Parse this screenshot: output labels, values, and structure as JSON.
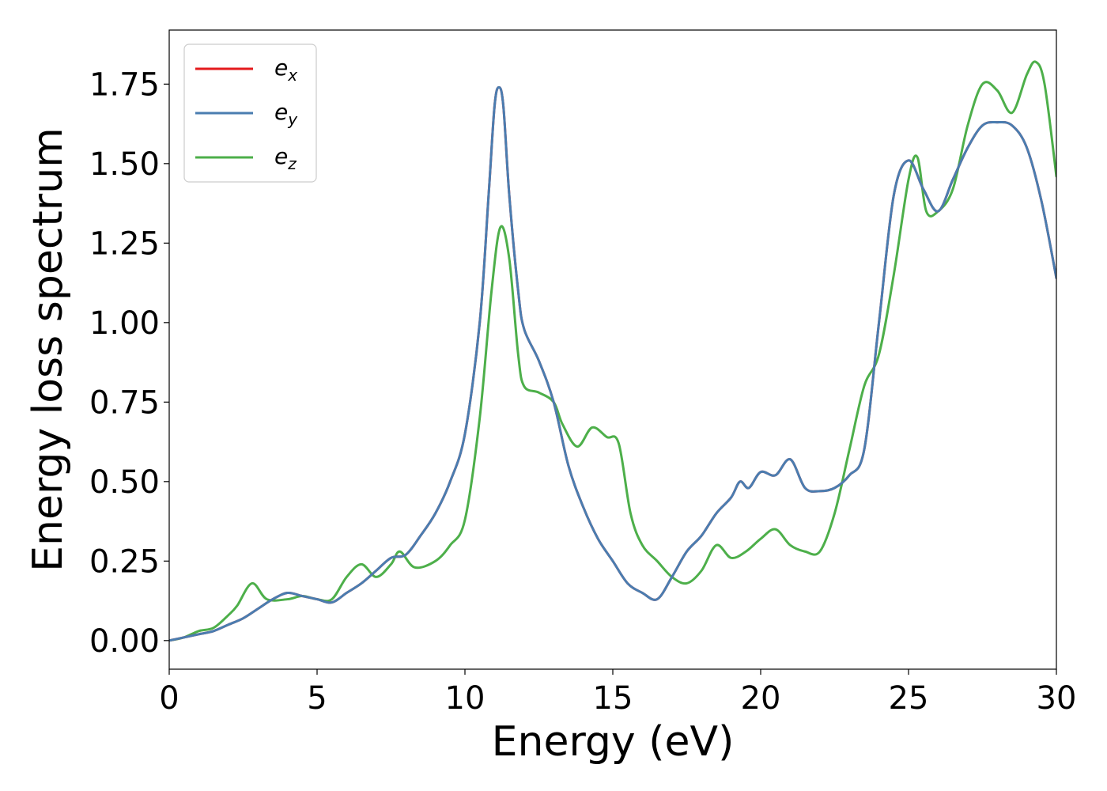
{
  "chart_data": {
    "type": "line",
    "xlabel": "Energy (eV)",
    "ylabel": "Energy loss spectrum",
    "xlim": [
      0,
      30
    ],
    "ylim": [
      -0.09,
      1.92
    ],
    "xticks": [
      "0",
      "5",
      "10",
      "15",
      "20",
      "25",
      "30"
    ],
    "yticks": [
      "0.00",
      "0.25",
      "0.50",
      "0.75",
      "1.00",
      "1.25",
      "1.50",
      "1.75"
    ],
    "grid": false,
    "legend_position": "top-left",
    "series": [
      {
        "name": "e_x",
        "label_base": "e",
        "label_sub": "x",
        "color": "#e41a1c",
        "x": [
          0,
          0.5,
          1,
          1.5,
          2,
          2.5,
          3,
          3.5,
          4,
          4.5,
          5,
          5.5,
          6,
          6.5,
          7,
          7.5,
          8,
          8.5,
          9,
          9.5,
          10,
          10.5,
          10.8,
          11,
          11.15,
          11.3,
          11.5,
          11.8,
          12,
          12.5,
          13,
          13.5,
          14,
          14.5,
          15,
          15.5,
          16,
          16.5,
          17,
          17.5,
          18,
          18.5,
          19,
          19.3,
          19.6,
          20,
          20.5,
          21,
          21.5,
          22,
          22.5,
          23,
          23.5,
          24,
          24.5,
          25,
          25.5,
          26,
          26.5,
          27,
          27.5,
          28,
          28.5,
          29,
          29.5,
          30
        ],
        "y": [
          0,
          0.01,
          0.02,
          0.03,
          0.05,
          0.07,
          0.1,
          0.13,
          0.15,
          0.14,
          0.13,
          0.12,
          0.15,
          0.18,
          0.22,
          0.26,
          0.27,
          0.33,
          0.4,
          0.5,
          0.65,
          1.0,
          1.4,
          1.68,
          1.74,
          1.68,
          1.4,
          1.1,
          0.98,
          0.88,
          0.75,
          0.55,
          0.42,
          0.32,
          0.25,
          0.18,
          0.15,
          0.13,
          0.2,
          0.28,
          0.33,
          0.4,
          0.45,
          0.5,
          0.48,
          0.53,
          0.52,
          0.57,
          0.48,
          0.47,
          0.48,
          0.52,
          0.6,
          1.0,
          1.4,
          1.51,
          1.42,
          1.35,
          1.45,
          1.55,
          1.62,
          1.63,
          1.62,
          1.55,
          1.38,
          1.14
        ]
      },
      {
        "name": "e_y",
        "label_base": "e",
        "label_sub": "y",
        "color": "#4a7db0",
        "x": [
          0,
          0.5,
          1,
          1.5,
          2,
          2.5,
          3,
          3.5,
          4,
          4.5,
          5,
          5.5,
          6,
          6.5,
          7,
          7.5,
          8,
          8.5,
          9,
          9.5,
          10,
          10.5,
          10.8,
          11,
          11.15,
          11.3,
          11.5,
          11.8,
          12,
          12.5,
          13,
          13.5,
          14,
          14.5,
          15,
          15.5,
          16,
          16.5,
          17,
          17.5,
          18,
          18.5,
          19,
          19.3,
          19.6,
          20,
          20.5,
          21,
          21.5,
          22,
          22.5,
          23,
          23.5,
          24,
          24.5,
          25,
          25.5,
          26,
          26.5,
          27,
          27.5,
          28,
          28.5,
          29,
          29.5,
          30
        ],
        "y": [
          0,
          0.01,
          0.02,
          0.03,
          0.05,
          0.07,
          0.1,
          0.13,
          0.15,
          0.14,
          0.13,
          0.12,
          0.15,
          0.18,
          0.22,
          0.26,
          0.27,
          0.33,
          0.4,
          0.5,
          0.65,
          1.0,
          1.4,
          1.68,
          1.74,
          1.68,
          1.4,
          1.1,
          0.98,
          0.88,
          0.75,
          0.55,
          0.42,
          0.32,
          0.25,
          0.18,
          0.15,
          0.13,
          0.2,
          0.28,
          0.33,
          0.4,
          0.45,
          0.5,
          0.48,
          0.53,
          0.52,
          0.57,
          0.48,
          0.47,
          0.48,
          0.52,
          0.6,
          1.0,
          1.4,
          1.51,
          1.42,
          1.35,
          1.45,
          1.55,
          1.62,
          1.63,
          1.62,
          1.55,
          1.38,
          1.14
        ]
      },
      {
        "name": "e_z",
        "label_base": "e",
        "label_sub": "z",
        "color": "#4daf4a",
        "x": [
          0,
          0.5,
          1,
          1.5,
          2,
          2.3,
          2.8,
          3.3,
          4,
          4.5,
          5,
          5.5,
          6,
          6.5,
          7,
          7.5,
          7.8,
          8.3,
          9,
          9.5,
          10,
          10.5,
          10.9,
          11.2,
          11.5,
          11.8,
          12,
          12.5,
          13,
          13.3,
          13.8,
          14.3,
          14.8,
          15.2,
          15.6,
          16,
          16.5,
          17,
          17.5,
          18,
          18.5,
          19,
          19.5,
          20,
          20.5,
          21,
          21.5,
          22,
          22.5,
          23,
          23.5,
          24,
          24.5,
          25,
          25.3,
          25.6,
          26,
          26.5,
          27,
          27.5,
          28,
          28.5,
          29,
          29.3,
          29.6,
          30
        ],
        "y": [
          0,
          0.01,
          0.03,
          0.04,
          0.08,
          0.11,
          0.18,
          0.13,
          0.13,
          0.14,
          0.13,
          0.13,
          0.2,
          0.24,
          0.2,
          0.24,
          0.28,
          0.23,
          0.25,
          0.3,
          0.38,
          0.7,
          1.1,
          1.3,
          1.2,
          0.9,
          0.8,
          0.78,
          0.75,
          0.68,
          0.61,
          0.67,
          0.64,
          0.62,
          0.4,
          0.3,
          0.25,
          0.2,
          0.18,
          0.22,
          0.3,
          0.26,
          0.28,
          0.32,
          0.35,
          0.3,
          0.28,
          0.28,
          0.4,
          0.6,
          0.8,
          0.9,
          1.15,
          1.45,
          1.52,
          1.35,
          1.35,
          1.42,
          1.62,
          1.75,
          1.73,
          1.66,
          1.78,
          1.82,
          1.75,
          1.46
        ]
      }
    ]
  }
}
